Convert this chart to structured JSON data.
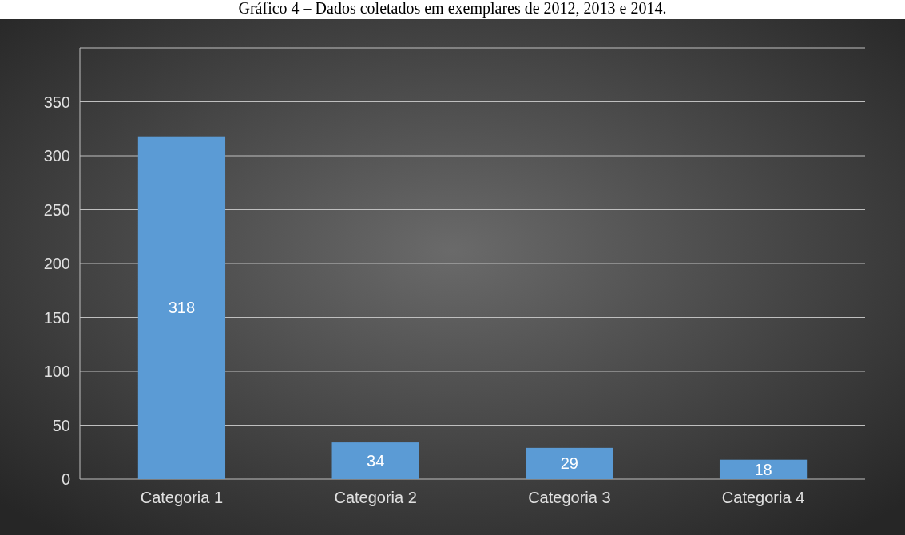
{
  "chart_data": {
    "type": "bar",
    "title": "Gráfico 4 – Dados coletados em exemplares de 2012, 2013 e 2014.",
    "categories": [
      "Categoria 1",
      "Categoria 2",
      "Categoria 3",
      "Categoria 4"
    ],
    "values": [
      318,
      34,
      29,
      18
    ],
    "color": "#5b9bd5",
    "data_labels": true,
    "ylim": [
      0,
      400
    ],
    "yticks": [
      0,
      50,
      100,
      150,
      200,
      250,
      300,
      350,
      {
        "value": 400,
        "label": null
      }
    ],
    "grid": "y"
  }
}
